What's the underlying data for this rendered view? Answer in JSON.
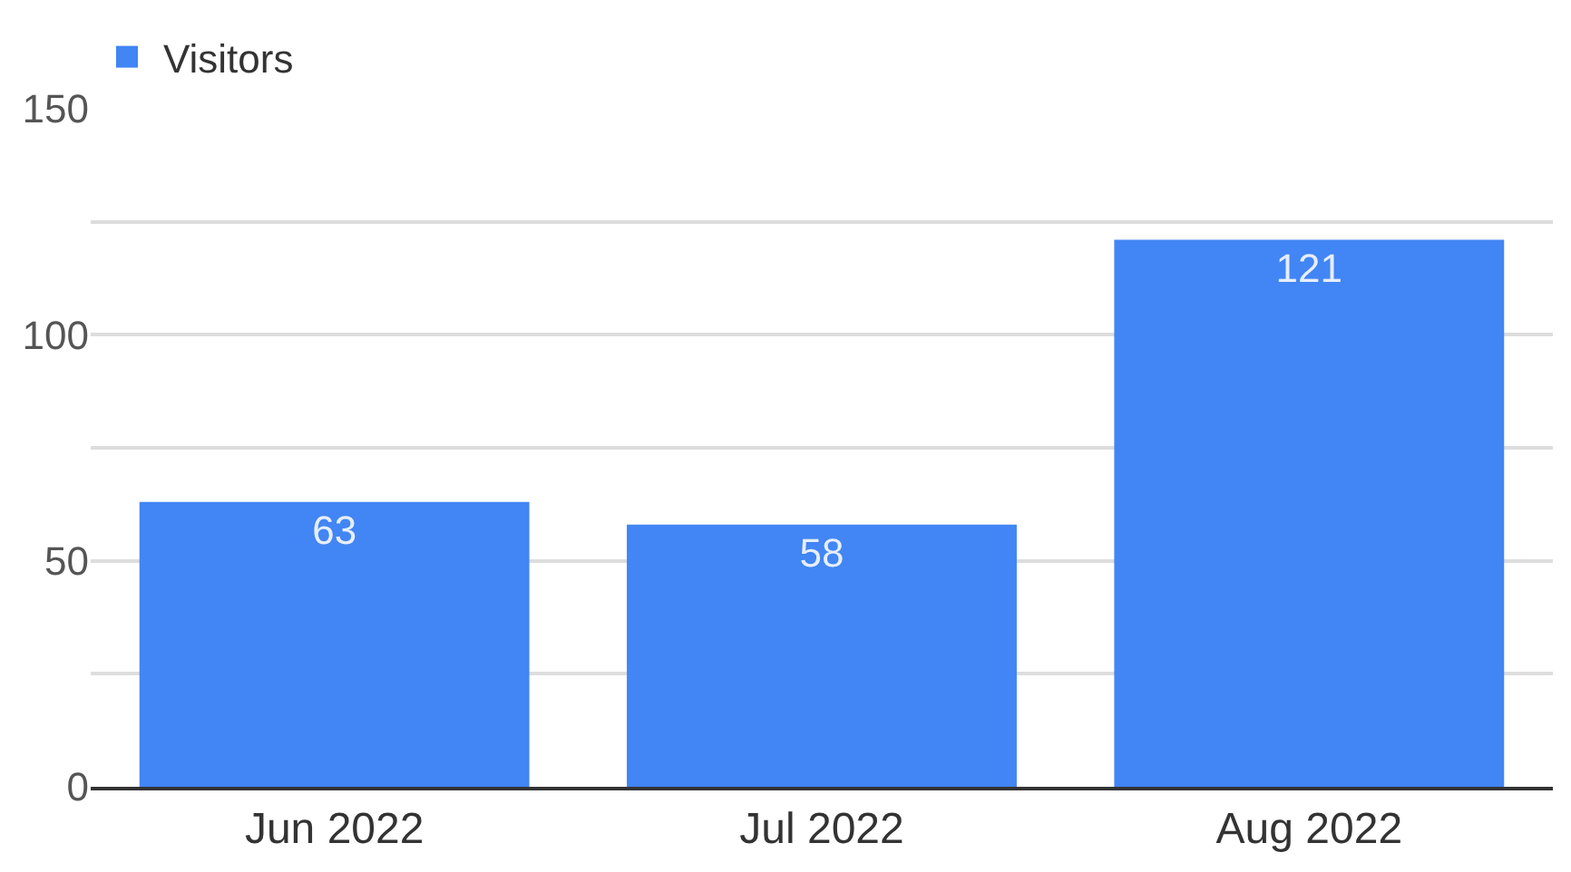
{
  "chart_data": {
    "type": "bar",
    "categories": [
      "Jun 2022",
      "Jul 2022",
      "Aug 2022"
    ],
    "series": [
      {
        "name": "Visitors",
        "color": "#4285f4",
        "values": [
          63,
          58,
          121
        ]
      }
    ],
    "ylim": [
      0,
      150
    ],
    "yticks": [
      0,
      {
        "value": 25,
        "label": null
      },
      50,
      {
        "value": 75,
        "label": null
      },
      100,
      {
        "value": 125,
        "label": null
      },
      150
    ],
    "grid": "y",
    "legend": "top left",
    "data_labels": true
  }
}
